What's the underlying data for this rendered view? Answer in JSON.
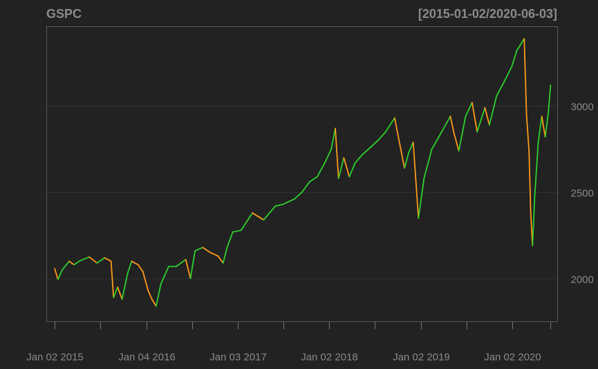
{
  "chart_data": {
    "type": "line",
    "title": "GSPC",
    "date_range_label": "[2015-01-02/2020-06-03]",
    "x_tick_labels": [
      "Jan 02 2015",
      "Jan 04 2016",
      "Jan 03 2017",
      "Jan 02 2018",
      "Jan 02 2019",
      "Jan 02 2020"
    ],
    "x_tick_dates": [
      "2015-01-02",
      "2016-01-04",
      "2017-01-03",
      "2018-01-02",
      "2019-01-02",
      "2020-01-02"
    ],
    "y_tick_labels": [
      "2000",
      "2500",
      "3000"
    ],
    "y_tick_values": [
      2000,
      2500,
      3000
    ],
    "xlim": [
      "2014-12-01",
      "2020-07-01"
    ],
    "ylim": [
      1750,
      3460
    ],
    "grid": "horizontal",
    "y_axis_side": "right",
    "colors": {
      "background": "#222222",
      "grid": "#2f2f2f",
      "frame": "#5a5a5a",
      "text": "#8a8a8a",
      "up": "#2cd22c",
      "down": "#ff9a1a"
    },
    "series": [
      {
        "x": [
          "2015-01-02",
          "2015-01-15",
          "2015-02-01",
          "2015-03-01",
          "2015-03-20",
          "2015-04-15",
          "2015-05-20",
          "2015-06-20",
          "2015-07-20",
          "2015-08-15",
          "2015-08-25",
          "2015-09-10",
          "2015-09-28",
          "2015-10-20",
          "2015-11-05",
          "2015-12-01",
          "2015-12-20",
          "2016-01-10",
          "2016-01-25",
          "2016-02-11",
          "2016-03-01",
          "2016-04-01",
          "2016-05-01",
          "2016-06-08",
          "2016-06-27",
          "2016-07-15",
          "2016-08-15",
          "2016-09-15",
          "2016-10-15",
          "2016-11-04",
          "2016-11-20",
          "2016-12-13",
          "2017-01-15",
          "2017-03-01",
          "2017-04-15",
          "2017-06-01",
          "2017-07-01",
          "2017-08-15",
          "2017-09-15",
          "2017-10-15",
          "2017-11-15",
          "2017-12-15",
          "2018-01-10",
          "2018-01-26",
          "2018-02-08",
          "2018-03-01",
          "2018-03-23",
          "2018-04-15",
          "2018-05-15",
          "2018-06-15",
          "2018-07-15",
          "2018-08-15",
          "2018-09-20",
          "2018-10-10",
          "2018-10-29",
          "2018-11-15",
          "2018-12-03",
          "2018-12-24",
          "2019-01-15",
          "2019-02-15",
          "2019-03-15",
          "2019-04-30",
          "2019-05-15",
          "2019-06-03",
          "2019-06-30",
          "2019-07-26",
          "2019-08-15",
          "2019-09-15",
          "2019-10-03",
          "2019-11-01",
          "2019-12-01",
          "2020-01-01",
          "2020-01-20",
          "2020-02-19",
          "2020-02-28",
          "2020-03-09",
          "2020-03-16",
          "2020-03-23",
          "2020-04-01",
          "2020-04-15",
          "2020-04-29",
          "2020-05-13",
          "2020-05-25",
          "2020-06-03"
        ],
        "y": [
          2058,
          1995,
          2050,
          2100,
          2080,
          2105,
          2125,
          2090,
          2120,
          2100,
          1890,
          1950,
          1880,
          2030,
          2100,
          2080,
          2040,
          1930,
          1880,
          1840,
          1970,
          2070,
          2070,
          2110,
          2000,
          2160,
          2180,
          2150,
          2130,
          2090,
          2180,
          2270,
          2280,
          2380,
          2340,
          2420,
          2430,
          2460,
          2500,
          2560,
          2590,
          2670,
          2750,
          2870,
          2580,
          2700,
          2590,
          2670,
          2720,
          2760,
          2800,
          2850,
          2930,
          2780,
          2640,
          2730,
          2790,
          2350,
          2580,
          2750,
          2820,
          2940,
          2840,
          2740,
          2940,
          3020,
          2850,
          2990,
          2890,
          3060,
          3140,
          3230,
          3320,
          3390,
          2950,
          2740,
          2380,
          2190,
          2480,
          2790,
          2940,
          2820,
          2960,
          3120
        ]
      }
    ]
  }
}
